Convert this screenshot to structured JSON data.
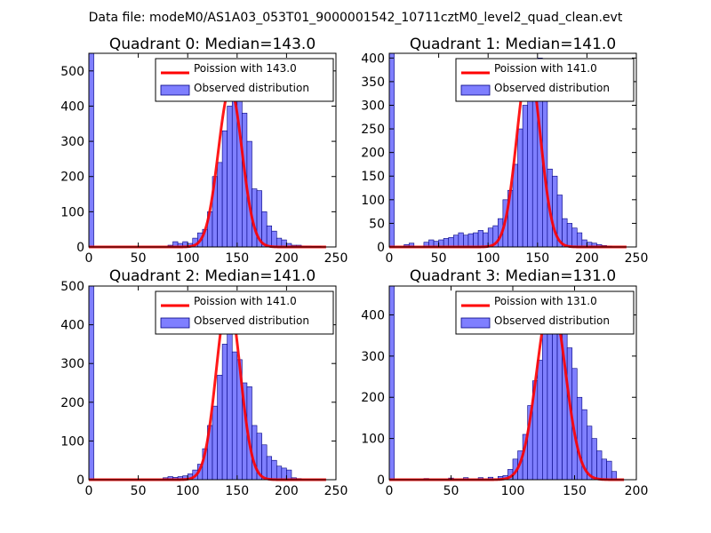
{
  "figure_title": "Data file: modeM0/AS1A03_053T01_9000001542_10711cztM0_level2_quad_clean.evt",
  "colors": {
    "hist_fill": "#7f7fff",
    "hist_edge": "#00007f",
    "poisson": "#ff0000",
    "frame": "#000000"
  },
  "chart_data": [
    {
      "type": "bar",
      "title": "Quadrant 0: Median=143.0",
      "xlim": [
        0,
        250
      ],
      "ylim": [
        0,
        550
      ],
      "xticks": [
        0,
        50,
        100,
        150,
        200,
        250
      ],
      "yticks": [
        0,
        100,
        200,
        300,
        400,
        500
      ],
      "bin_width": 5,
      "legend": [
        "Poission with 143.0",
        "Observed distribution"
      ],
      "legend_position": "top-right",
      "bins": [
        0,
        80,
        85,
        90,
        95,
        100,
        105,
        110,
        115,
        120,
        125,
        130,
        135,
        140,
        145,
        150,
        155,
        160,
        165,
        170,
        175,
        180,
        185,
        190,
        195,
        200,
        205,
        210,
        215,
        220,
        225,
        230
      ],
      "counts": [
        550,
        5,
        15,
        10,
        15,
        10,
        25,
        40,
        50,
        100,
        200,
        240,
        330,
        400,
        520,
        480,
        380,
        300,
        165,
        160,
        100,
        60,
        45,
        25,
        20,
        10,
        5,
        5,
        3,
        3,
        2,
        2
      ],
      "poisson": {
        "mean": 143,
        "peak": 450,
        "sigma": 12,
        "x": [
          0,
          240
        ]
      }
    },
    {
      "type": "bar",
      "title": "Quadrant 1: Median=141.0",
      "xlim": [
        0,
        250
      ],
      "ylim": [
        0,
        410
      ],
      "xticks": [
        0,
        50,
        100,
        150,
        200,
        250
      ],
      "yticks": [
        0,
        50,
        100,
        150,
        200,
        250,
        300,
        350,
        400
      ],
      "bin_width": 5,
      "legend": [
        "Poission with 141.0",
        "Observed distribution"
      ],
      "legend_position": "top-right",
      "bins": [
        0,
        15,
        20,
        35,
        40,
        45,
        50,
        55,
        60,
        65,
        70,
        75,
        80,
        85,
        90,
        95,
        100,
        105,
        110,
        115,
        120,
        125,
        130,
        135,
        140,
        145,
        150,
        155,
        160,
        165,
        170,
        175,
        180,
        185,
        190,
        195,
        200,
        205,
        210,
        215,
        220
      ],
      "counts": [
        410,
        5,
        8,
        10,
        15,
        12,
        15,
        18,
        20,
        25,
        30,
        25,
        28,
        30,
        35,
        30,
        40,
        45,
        60,
        100,
        120,
        175,
        250,
        300,
        310,
        310,
        400,
        390,
        165,
        150,
        110,
        60,
        50,
        40,
        30,
        15,
        10,
        8,
        5,
        3,
        2
      ],
      "poisson": {
        "mean": 141,
        "peak": 385,
        "sigma": 12,
        "x": [
          0,
          240
        ]
      }
    },
    {
      "type": "bar",
      "title": "Quadrant 2: Median=141.0",
      "xlim": [
        0,
        250
      ],
      "ylim": [
        0,
        500
      ],
      "xticks": [
        0,
        50,
        100,
        150,
        200,
        250
      ],
      "yticks": [
        0,
        100,
        200,
        300,
        400,
        500
      ],
      "bin_width": 5,
      "legend": [
        "Poission with 141.0",
        "Observed distribution"
      ],
      "legend_position": "top-right",
      "bins": [
        0,
        75,
        80,
        85,
        90,
        95,
        100,
        105,
        110,
        115,
        120,
        125,
        130,
        135,
        140,
        145,
        150,
        155,
        160,
        165,
        170,
        175,
        180,
        185,
        190,
        195,
        200,
        205,
        210
      ],
      "counts": [
        500,
        5,
        8,
        6,
        8,
        10,
        15,
        25,
        40,
        80,
        140,
        190,
        270,
        350,
        380,
        330,
        310,
        250,
        240,
        140,
        120,
        90,
        60,
        50,
        35,
        30,
        25,
        5,
        3
      ],
      "poisson": {
        "mean": 141,
        "peak": 470,
        "sigma": 12,
        "x": [
          0,
          240
        ]
      }
    },
    {
      "type": "bar",
      "title": "Quadrant 3: Median=131.0",
      "xlim": [
        0,
        200
      ],
      "ylim": [
        0,
        470
      ],
      "xticks": [
        0,
        50,
        100,
        150,
        200
      ],
      "yticks": [
        0,
        100,
        200,
        300,
        400
      ],
      "bin_width": 4,
      "legend": [
        "Poission with 131.0",
        "Observed distribution"
      ],
      "legend_position": "top-right",
      "bins": [
        0,
        28,
        48,
        60,
        72,
        80,
        88,
        92,
        96,
        100,
        104,
        108,
        112,
        116,
        120,
        124,
        128,
        132,
        136,
        140,
        144,
        148,
        152,
        156,
        160,
        164,
        168,
        172,
        176,
        180
      ],
      "counts": [
        470,
        3,
        4,
        5,
        5,
        6,
        8,
        10,
        25,
        50,
        70,
        110,
        180,
        240,
        290,
        360,
        440,
        420,
        420,
        390,
        320,
        270,
        200,
        170,
        130,
        100,
        70,
        50,
        45,
        20
      ],
      "poisson": {
        "mean": 131,
        "peak": 440,
        "sigma": 11.5,
        "x": [
          0,
          190
        ]
      }
    }
  ]
}
